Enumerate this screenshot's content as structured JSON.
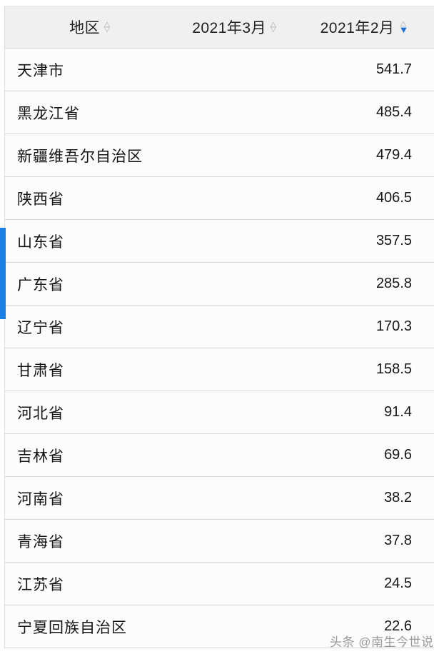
{
  "page": {
    "watermark": "头条 @南生今世说"
  },
  "icons": {
    "sort_up_hollow": "△",
    "sort_down_hollow": "▽",
    "sort_down_active": "▼"
  },
  "colors": {
    "sort_active_blue": "#1c6fd9",
    "scrollbar_blue": "#1a80e6",
    "header_bg": "#f1f0f0",
    "row_bg": "#fcfcfc",
    "row_border": "#d6d6d6"
  },
  "table": {
    "columns": [
      {
        "id": "region",
        "label": "地区",
        "sort": "none"
      },
      {
        "id": "mar_2021",
        "label": "2021年3月",
        "sort": "none"
      },
      {
        "id": "feb_2021",
        "label": "2021年2月",
        "sort": "desc"
      }
    ],
    "rows": [
      {
        "region": "天津市",
        "mar_2021": "",
        "feb_2021": "541.7"
      },
      {
        "region": "黑龙江省",
        "mar_2021": "",
        "feb_2021": "485.4"
      },
      {
        "region": "新疆维吾尔自治区",
        "mar_2021": "",
        "feb_2021": "479.4"
      },
      {
        "region": "陕西省",
        "mar_2021": "",
        "feb_2021": "406.5"
      },
      {
        "region": "山东省",
        "mar_2021": "",
        "feb_2021": "357.5"
      },
      {
        "region": "广东省",
        "mar_2021": "",
        "feb_2021": "285.8"
      },
      {
        "region": "辽宁省",
        "mar_2021": "",
        "feb_2021": "170.3"
      },
      {
        "region": "甘肃省",
        "mar_2021": "",
        "feb_2021": "158.5"
      },
      {
        "region": "河北省",
        "mar_2021": "",
        "feb_2021": "91.4"
      },
      {
        "region": "吉林省",
        "mar_2021": "",
        "feb_2021": "69.6"
      },
      {
        "region": "河南省",
        "mar_2021": "",
        "feb_2021": "38.2"
      },
      {
        "region": "青海省",
        "mar_2021": "",
        "feb_2021": "37.8"
      },
      {
        "region": "江苏省",
        "mar_2021": "",
        "feb_2021": "24.5"
      },
      {
        "region": "宁夏回族自治区",
        "mar_2021": "",
        "feb_2021": "22.6"
      }
    ]
  }
}
